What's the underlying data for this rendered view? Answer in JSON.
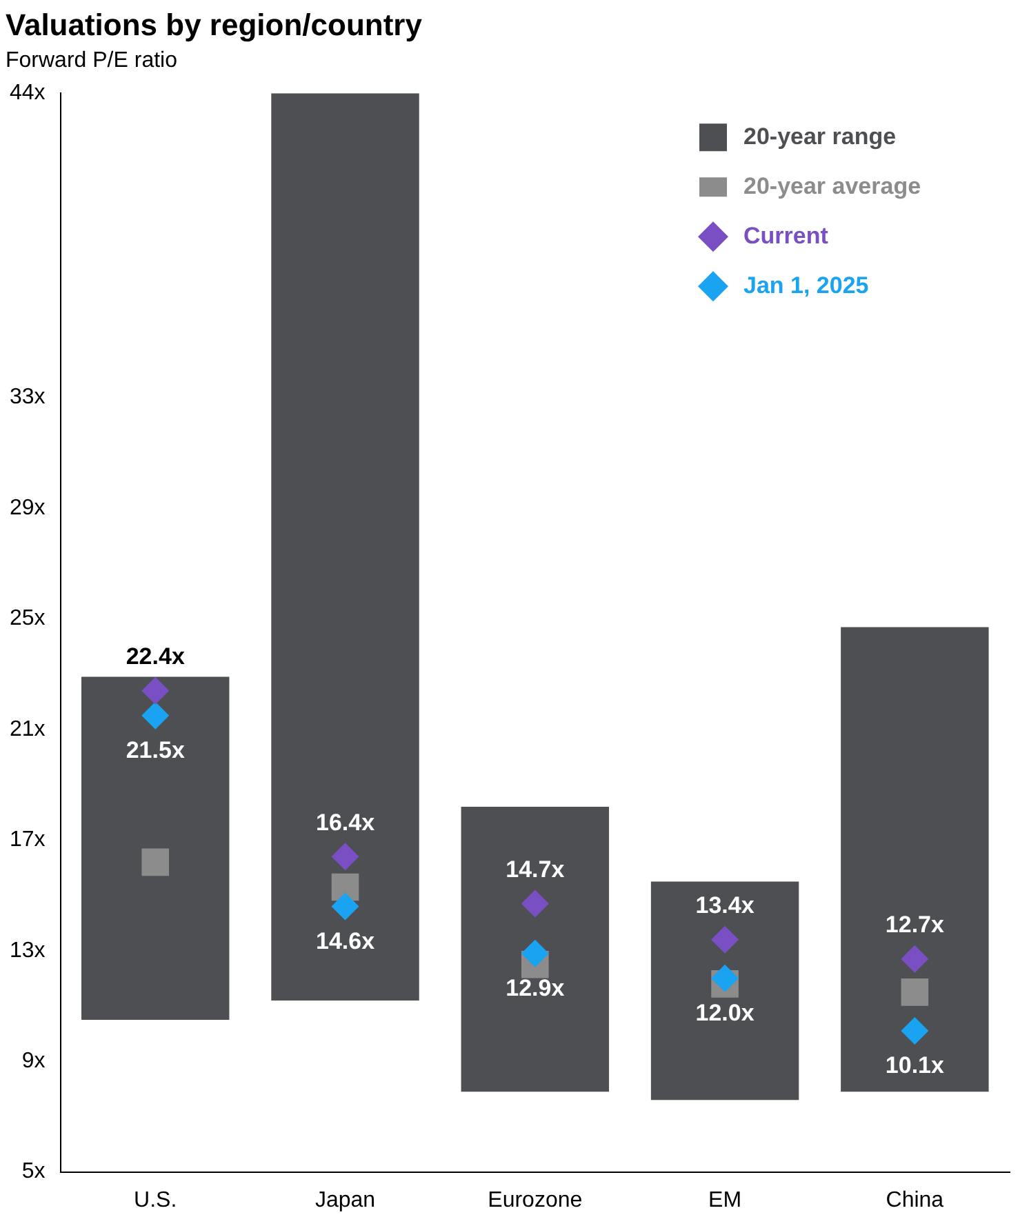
{
  "chart_data": {
    "type": "bar",
    "title": "Valuations by region/country",
    "subtitle": "Forward P/E ratio",
    "categories": [
      "U.S.",
      "Japan",
      "Eurozone",
      "EM",
      "China"
    ],
    "series": [
      {
        "name": "20-year range",
        "color": "#4d4f53",
        "base": [
          10.5,
          11.2,
          7.9,
          7.6,
          7.9
        ],
        "values": [
          12.4,
          32.8,
          10.3,
          7.9,
          16.8
        ]
      },
      {
        "name": "20-year average",
        "type": "scatter",
        "marker": "square",
        "color": "#8c8c8c",
        "values": [
          16.2,
          15.3,
          12.5,
          11.8,
          11.5
        ]
      },
      {
        "name": "Current",
        "type": "scatter",
        "marker": "diamond",
        "color": "#7b4fc4",
        "values": [
          22.4,
          16.4,
          14.7,
          13.4,
          12.7
        ],
        "value_labels": [
          "22.4x",
          "16.4x",
          "14.7x",
          "13.4x",
          "12.7x"
        ]
      },
      {
        "name": "Jan 1, 2025",
        "type": "scatter",
        "marker": "diamond",
        "color": "#1aa3f0",
        "values": [
          21.5,
          14.6,
          12.9,
          12.0,
          10.1
        ],
        "value_labels": [
          "21.5x",
          "14.6x",
          "12.9x",
          "12.0x",
          "10.1x"
        ]
      }
    ],
    "ylim": [
      5,
      44
    ],
    "yticks": [
      {
        "value": 5,
        "label": "5x"
      },
      {
        "value": 9,
        "label": "9x"
      },
      {
        "value": 13,
        "label": "13x"
      },
      {
        "value": 17,
        "label": "17x"
      },
      {
        "value": 21,
        "label": "21x"
      },
      {
        "value": 25,
        "label": "25x"
      },
      {
        "value": 29,
        "label": "29x"
      },
      {
        "value": 33,
        "label": "33x"
      },
      {
        "value": 44,
        "label": "44x"
      }
    ],
    "grid": false,
    "legend": "top right"
  }
}
